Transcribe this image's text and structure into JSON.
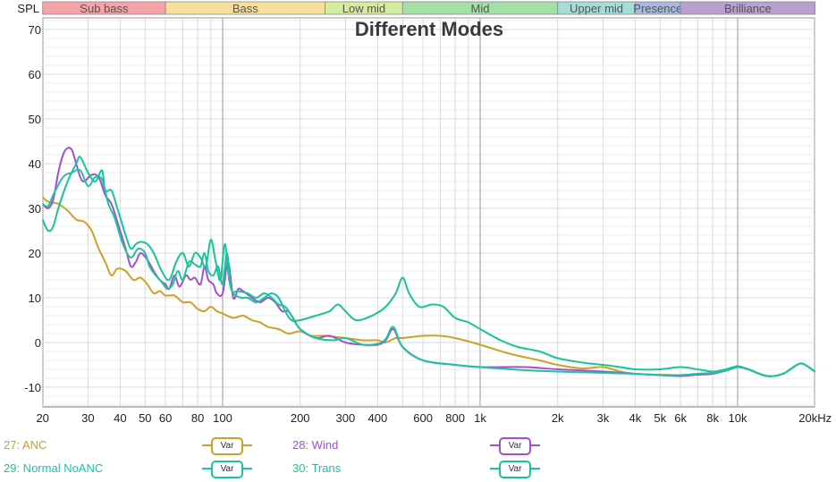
{
  "chart_data": {
    "type": "line",
    "title": "Different Modes",
    "ylabel": "SPL",
    "xlabel": "Hz",
    "xscale": "log",
    "xlim": [
      20,
      20000
    ],
    "ylim": [
      -14,
      72
    ],
    "yticks": [
      70,
      60,
      50,
      40,
      30,
      20,
      10,
      0,
      -10
    ],
    "xticks": [
      {
        "f": 20,
        "label": "20"
      },
      {
        "f": 30,
        "label": "30"
      },
      {
        "f": 40,
        "label": "40"
      },
      {
        "f": 50,
        "label": "50"
      },
      {
        "f": 60,
        "label": "60"
      },
      {
        "f": 80,
        "label": "80"
      },
      {
        "f": 100,
        "label": "100"
      },
      {
        "f": 200,
        "label": "200"
      },
      {
        "f": 300,
        "label": "300"
      },
      {
        "f": 400,
        "label": "400"
      },
      {
        "f": 600,
        "label": "600"
      },
      {
        "f": 800,
        "label": "800"
      },
      {
        "f": 1000,
        "label": "1k"
      },
      {
        "f": 2000,
        "label": "2k"
      },
      {
        "f": 3000,
        "label": "3k"
      },
      {
        "f": 4000,
        "label": "4k"
      },
      {
        "f": 5000,
        "label": "5k"
      },
      {
        "f": 6000,
        "label": "6k"
      },
      {
        "f": 8000,
        "label": "8k"
      },
      {
        "f": 10000,
        "label": "10k"
      },
      {
        "f": 20000,
        "label": "20kHz"
      }
    ],
    "grid": true,
    "bands": [
      {
        "label": "Sub bass",
        "from": 20,
        "to": 60,
        "color": "#f4a3a8"
      },
      {
        "label": "Bass",
        "from": 60,
        "to": 250,
        "color": "#f7df9e"
      },
      {
        "label": "Low mid",
        "from": 250,
        "to": 500,
        "color": "#d4eba0"
      },
      {
        "label": "Mid",
        "from": 500,
        "to": 2000,
        "color": "#a3e0a8"
      },
      {
        "label": "Upper mid",
        "from": 2000,
        "to": 4000,
        "color": "#a3ddd6"
      },
      {
        "label": "Presence",
        "from": 4000,
        "to": 6000,
        "color": "#a9b9de"
      },
      {
        "label": "Brilliance",
        "from": 6000,
        "to": 20000,
        "color": "#b9a0cf"
      }
    ],
    "series": [
      {
        "name": "27: ANC",
        "color": "#c9a227",
        "points": [
          [
            20,
            32.5
          ],
          [
            21,
            31.5
          ],
          [
            23,
            31
          ],
          [
            25,
            29.5
          ],
          [
            27,
            27.5
          ],
          [
            29,
            27
          ],
          [
            31,
            25
          ],
          [
            33,
            21
          ],
          [
            35,
            18
          ],
          [
            37,
            15
          ],
          [
            39,
            16.5
          ],
          [
            42,
            16
          ],
          [
            45,
            14
          ],
          [
            48,
            14.5
          ],
          [
            51,
            13
          ],
          [
            54,
            11
          ],
          [
            57,
            11.5
          ],
          [
            60,
            10.5
          ],
          [
            65,
            10.5
          ],
          [
            70,
            9
          ],
          [
            75,
            9
          ],
          [
            80,
            7.5
          ],
          [
            85,
            7
          ],
          [
            90,
            8
          ],
          [
            95,
            7
          ],
          [
            100,
            6.5
          ],
          [
            110,
            5.5
          ],
          [
            120,
            6
          ],
          [
            130,
            5
          ],
          [
            140,
            4.5
          ],
          [
            150,
            3.5
          ],
          [
            165,
            3
          ],
          [
            180,
            2
          ],
          [
            200,
            2.5
          ],
          [
            220,
            1.5
          ],
          [
            250,
            1.5
          ],
          [
            300,
            1
          ],
          [
            350,
            0.5
          ],
          [
            400,
            0.5
          ],
          [
            430,
            0
          ],
          [
            470,
            1
          ],
          [
            500,
            1
          ],
          [
            600,
            1.5
          ],
          [
            700,
            1.5
          ],
          [
            800,
            1
          ],
          [
            1000,
            -0.5
          ],
          [
            1300,
            -2.5
          ],
          [
            1700,
            -4
          ],
          [
            2000,
            -5
          ],
          [
            2500,
            -5.8
          ],
          [
            3000,
            -5.5
          ],
          [
            3500,
            -6.5
          ],
          [
            4000,
            -7
          ],
          [
            5000,
            -7.2
          ],
          [
            6000,
            -7.3
          ],
          [
            7000,
            -7
          ],
          [
            8000,
            -6.8
          ],
          [
            9000,
            -6.2
          ],
          [
            10000,
            -5.5
          ],
          [
            11000,
            -6
          ],
          [
            13000,
            -7.5
          ],
          [
            15000,
            -7
          ],
          [
            17000,
            -5
          ],
          [
            18000,
            -4.8
          ],
          [
            20000,
            -6.5
          ]
        ]
      },
      {
        "name": "28: Wind",
        "color": "#a64fcc",
        "points": [
          [
            20,
            31
          ],
          [
            21,
            30
          ],
          [
            22,
            32
          ],
          [
            23,
            38
          ],
          [
            24,
            42
          ],
          [
            25,
            43.5
          ],
          [
            26,
            43
          ],
          [
            27,
            40
          ],
          [
            28,
            37
          ],
          [
            29,
            36
          ],
          [
            31,
            37.5
          ],
          [
            33,
            37
          ],
          [
            35,
            33
          ],
          [
            37,
            31
          ],
          [
            39,
            27
          ],
          [
            42,
            21
          ],
          [
            44,
            17
          ],
          [
            46,
            18
          ],
          [
            48,
            20
          ],
          [
            51,
            18.5
          ],
          [
            54,
            16
          ],
          [
            57,
            14
          ],
          [
            60,
            13
          ],
          [
            62,
            12
          ],
          [
            65,
            15
          ],
          [
            68,
            12.5
          ],
          [
            72,
            15
          ],
          [
            75,
            14
          ],
          [
            78,
            14.5
          ],
          [
            82,
            13
          ],
          [
            85,
            17
          ],
          [
            88,
            14
          ],
          [
            92,
            13
          ],
          [
            95,
            11
          ],
          [
            100,
            11
          ],
          [
            105,
            18
          ],
          [
            110,
            10
          ],
          [
            115,
            12
          ],
          [
            120,
            11.5
          ],
          [
            130,
            10
          ],
          [
            140,
            9
          ],
          [
            150,
            10
          ],
          [
            160,
            9
          ],
          [
            170,
            7
          ],
          [
            180,
            7
          ],
          [
            190,
            5
          ],
          [
            200,
            3
          ],
          [
            230,
            1
          ],
          [
            260,
            1.5
          ],
          [
            300,
            0
          ],
          [
            350,
            -0.5
          ],
          [
            400,
            -0.5
          ],
          [
            430,
            0.5
          ],
          [
            460,
            3
          ],
          [
            500,
            -1
          ],
          [
            600,
            -4
          ],
          [
            800,
            -5
          ],
          [
            1000,
            -5.5
          ],
          [
            1500,
            -5.5
          ],
          [
            2000,
            -6
          ],
          [
            3000,
            -6.5
          ],
          [
            4000,
            -7
          ],
          [
            5000,
            -7.3
          ],
          [
            6000,
            -7.5
          ],
          [
            7000,
            -7.2
          ],
          [
            8000,
            -7
          ],
          [
            9000,
            -6.3
          ],
          [
            10000,
            -5.5
          ],
          [
            11000,
            -6
          ],
          [
            13000,
            -7.5
          ],
          [
            15000,
            -7
          ],
          [
            17000,
            -5
          ],
          [
            18000,
            -4.8
          ],
          [
            20000,
            -6.5
          ]
        ]
      },
      {
        "name": "29: Normal NoANC",
        "color": "#1ec3a0",
        "points": [
          [
            20,
            31
          ],
          [
            21,
            30.5
          ],
          [
            22,
            33
          ],
          [
            24,
            37
          ],
          [
            26,
            38
          ],
          [
            28,
            38.5
          ],
          [
            30,
            35
          ],
          [
            32,
            37
          ],
          [
            34,
            36.5
          ],
          [
            36,
            31
          ],
          [
            38,
            28
          ],
          [
            41,
            22
          ],
          [
            44,
            19
          ],
          [
            47,
            21
          ],
          [
            50,
            20
          ],
          [
            52,
            17
          ],
          [
            55,
            15
          ],
          [
            58,
            13.5
          ],
          [
            61,
            12
          ],
          [
            64,
            13
          ],
          [
            67,
            16
          ],
          [
            70,
            14
          ],
          [
            74,
            18
          ],
          [
            78,
            17.5
          ],
          [
            82,
            17
          ],
          [
            85,
            20
          ],
          [
            88,
            16
          ],
          [
            92,
            15
          ],
          [
            96,
            17
          ],
          [
            100,
            13
          ],
          [
            104,
            20
          ],
          [
            108,
            12
          ],
          [
            115,
            11.5
          ],
          [
            125,
            11
          ],
          [
            135,
            10
          ],
          [
            145,
            11
          ],
          [
            155,
            10
          ],
          [
            165,
            8.5
          ],
          [
            175,
            8
          ],
          [
            185,
            6
          ],
          [
            200,
            3
          ],
          [
            230,
            1
          ],
          [
            270,
            0.5
          ],
          [
            300,
            1
          ],
          [
            350,
            -0.5
          ],
          [
            400,
            -0.3
          ],
          [
            430,
            0.8
          ],
          [
            460,
            3.5
          ],
          [
            500,
            -1
          ],
          [
            600,
            -4
          ],
          [
            800,
            -5
          ],
          [
            1000,
            -5.5
          ],
          [
            1500,
            -6.2
          ],
          [
            2000,
            -6.5
          ],
          [
            3000,
            -6.8
          ],
          [
            4000,
            -7
          ],
          [
            5000,
            -7.3
          ],
          [
            6000,
            -7.3
          ],
          [
            7000,
            -7
          ],
          [
            8000,
            -6.8
          ],
          [
            9000,
            -6.3
          ],
          [
            10000,
            -5.5
          ],
          [
            11000,
            -6
          ],
          [
            13000,
            -7.5
          ],
          [
            15000,
            -7
          ],
          [
            17000,
            -5
          ],
          [
            18000,
            -4.8
          ],
          [
            20000,
            -6.5
          ]
        ]
      },
      {
        "name": "30: Trans",
        "color": "#17c49a",
        "points": [
          [
            20,
            27.5
          ],
          [
            21,
            25
          ],
          [
            22,
            26
          ],
          [
            23,
            30
          ],
          [
            25,
            36
          ],
          [
            27,
            40
          ],
          [
            28,
            41.5
          ],
          [
            30,
            38
          ],
          [
            32,
            36
          ],
          [
            34,
            38.5
          ],
          [
            35,
            34
          ],
          [
            37,
            34
          ],
          [
            39,
            30
          ],
          [
            42,
            24
          ],
          [
            44,
            21
          ],
          [
            46,
            22
          ],
          [
            48,
            22.5
          ],
          [
            51,
            22
          ],
          [
            54,
            20
          ],
          [
            58,
            16
          ],
          [
            62,
            14
          ],
          [
            66,
            18
          ],
          [
            70,
            20
          ],
          [
            74,
            17
          ],
          [
            78,
            20
          ],
          [
            82,
            19
          ],
          [
            86,
            17
          ],
          [
            90,
            23
          ],
          [
            94,
            18
          ],
          [
            98,
            14
          ],
          [
            102,
            22
          ],
          [
            106,
            14
          ],
          [
            110,
            11
          ],
          [
            118,
            10
          ],
          [
            125,
            10
          ],
          [
            135,
            9
          ],
          [
            145,
            10
          ],
          [
            155,
            11
          ],
          [
            165,
            10
          ],
          [
            175,
            7
          ],
          [
            185,
            5
          ],
          [
            200,
            5
          ],
          [
            230,
            6
          ],
          [
            260,
            7
          ],
          [
            280,
            8.5
          ],
          [
            300,
            7
          ],
          [
            330,
            5
          ],
          [
            380,
            6
          ],
          [
            430,
            8
          ],
          [
            470,
            11
          ],
          [
            500,
            14.5
          ],
          [
            530,
            11
          ],
          [
            580,
            8
          ],
          [
            650,
            8.5
          ],
          [
            720,
            8
          ],
          [
            800,
            5.5
          ],
          [
            900,
            4.5
          ],
          [
            1000,
            3
          ],
          [
            1200,
            0.5
          ],
          [
            1400,
            -1
          ],
          [
            1700,
            -2
          ],
          [
            2000,
            -3.5
          ],
          [
            2500,
            -4.5
          ],
          [
            3000,
            -5
          ],
          [
            3500,
            -5.5
          ],
          [
            4000,
            -6
          ],
          [
            5000,
            -6
          ],
          [
            6000,
            -5.5
          ],
          [
            7000,
            -6
          ],
          [
            8000,
            -6.5
          ],
          [
            9000,
            -6
          ],
          [
            10000,
            -5.3
          ],
          [
            11000,
            -6
          ],
          [
            13000,
            -7.5
          ],
          [
            15000,
            -7
          ],
          [
            17000,
            -5
          ],
          [
            18000,
            -4.8
          ],
          [
            20000,
            -6.5
          ]
        ]
      }
    ]
  },
  "header": {
    "spl_label": "SPL"
  },
  "legend": [
    {
      "label": "27: ANC",
      "button": "Var",
      "color": "#c9a227"
    },
    {
      "label": "28: Wind",
      "button": "Var",
      "color": "#a64fcc"
    },
    {
      "label": "29: Normal NoANC",
      "button": "Var",
      "color": "#1ec3a0"
    },
    {
      "label": "30: Trans",
      "button": "Var",
      "color": "#17c49a"
    }
  ]
}
